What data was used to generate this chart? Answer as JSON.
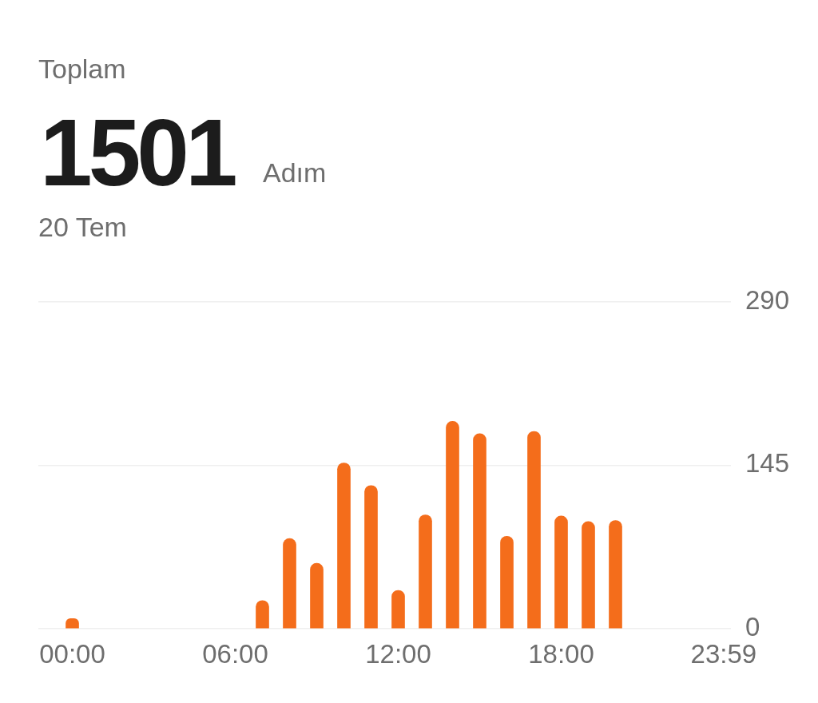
{
  "chart_data": {
    "type": "bar",
    "title": "Toplam",
    "annotations": [
      "1501",
      "Adım"
    ],
    "subtitle": "20 Tem",
    "x": [
      0,
      7,
      8,
      9,
      10,
      11,
      12,
      13,
      14,
      15,
      16,
      17,
      18,
      19,
      20
    ],
    "values": [
      9,
      25,
      80,
      58,
      147,
      127,
      34,
      101,
      184,
      173,
      82,
      175,
      100,
      95,
      96
    ],
    "color": "#f46d1b",
    "xlim": [
      -1.25,
      24.25
    ],
    "xticks": [
      {
        "value": 0,
        "label": "00:00"
      },
      {
        "value": 6,
        "label": "06:00"
      },
      {
        "value": 12,
        "label": "12:00"
      },
      {
        "value": 18,
        "label": "18:00"
      },
      {
        "value": 23.98,
        "label": "23:59"
      }
    ],
    "ylim": [
      0,
      290
    ],
    "yticks": [
      0,
      145,
      290
    ],
    "grid": "y"
  }
}
